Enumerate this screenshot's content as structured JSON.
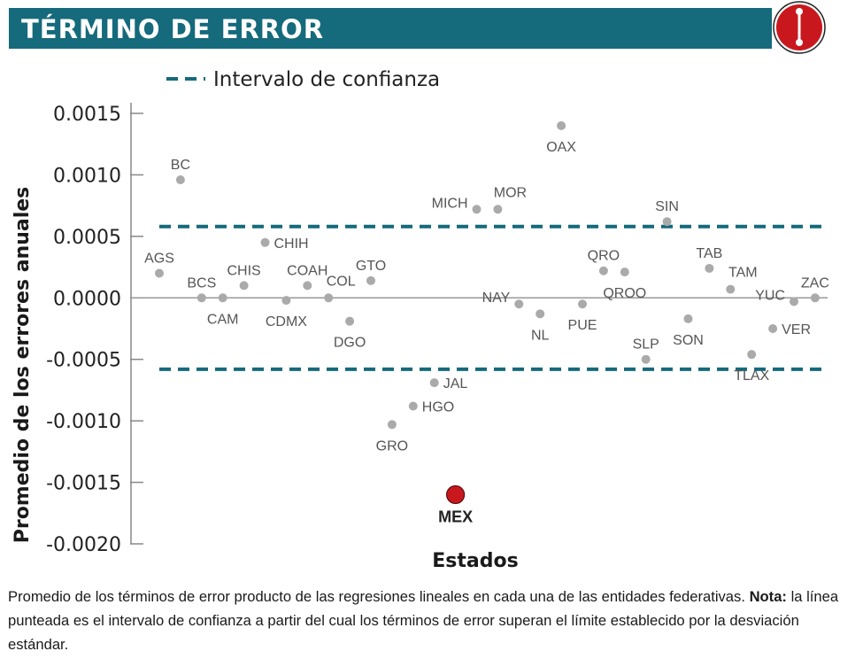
{
  "header": {
    "title": "TÉRMINO DE ERROR",
    "badge_icon": "exclamation-icon",
    "accent": "#156a7b",
    "badge_color": "#c8181e"
  },
  "chart_data": {
    "type": "scatter",
    "title": "TÉRMINO DE ERROR",
    "xlabel": "Estados",
    "ylabel": "Promedio de los errores anuales",
    "ylim": [
      -0.002,
      0.0015
    ],
    "yticks": [
      "0.0015",
      "0.0010",
      "0.0005",
      "0.0000",
      "-0.0005",
      "-0.0010",
      "-0.0015",
      "-0.0020"
    ],
    "ytick_values": [
      0.0015,
      0.001,
      0.0005,
      0.0,
      -0.0005,
      -0.001,
      -0.0015,
      -0.002
    ],
    "legend": {
      "label": "Intervalo de confianza",
      "position": "top-left"
    },
    "confidence_interval": [
      0.00058,
      -0.00058
    ],
    "zero_line": 0.0,
    "point_color": "#aaaaaa",
    "highlight_color": "#c8181e",
    "ci_color": "#156a7b",
    "points": [
      {
        "label": "AGS",
        "value": 0.0002,
        "label_pos": "above"
      },
      {
        "label": "BC",
        "value": 0.00096,
        "label_pos": "above"
      },
      {
        "label": "BCS",
        "value": 0.0,
        "label_pos": "above"
      },
      {
        "label": "CAM",
        "value": 0.0,
        "label_pos": "below"
      },
      {
        "label": "CHIS",
        "value": 0.0001,
        "label_pos": "above"
      },
      {
        "label": "CHIH",
        "value": 0.00045,
        "label_pos": "right"
      },
      {
        "label": "CDMX",
        "value": -2e-05,
        "label_pos": "below"
      },
      {
        "label": "COAH",
        "value": 0.0001,
        "label_pos": "above"
      },
      {
        "label": "COL",
        "value": 0.0,
        "label_pos": "above-right"
      },
      {
        "label": "DGO",
        "value": -0.00019,
        "label_pos": "below"
      },
      {
        "label": "GTO",
        "value": 0.00014,
        "label_pos": "above"
      },
      {
        "label": "GRO",
        "value": -0.00103,
        "label_pos": "below"
      },
      {
        "label": "HGO",
        "value": -0.00088,
        "label_pos": "right"
      },
      {
        "label": "JAL",
        "value": -0.00069,
        "label_pos": "right"
      },
      {
        "label": "MEX",
        "value": -0.0016,
        "label_pos": "below",
        "highlight": true
      },
      {
        "label": "MICH",
        "value": 0.00072,
        "label_pos": "left"
      },
      {
        "label": "MOR",
        "value": 0.00072,
        "label_pos": "above-right"
      },
      {
        "label": "NAY",
        "value": -5e-05,
        "label_pos": "left"
      },
      {
        "label": "NL",
        "value": -0.00013,
        "label_pos": "below"
      },
      {
        "label": "OAX",
        "value": 0.0014,
        "label_pos": "below"
      },
      {
        "label": "PUE",
        "value": -5e-05,
        "label_pos": "below"
      },
      {
        "label": "QRO",
        "value": 0.00022,
        "label_pos": "above"
      },
      {
        "label": "QROO",
        "value": 0.00021,
        "label_pos": "below"
      },
      {
        "label": "SLP",
        "value": -0.0005,
        "label_pos": "above"
      },
      {
        "label": "SIN",
        "value": 0.00062,
        "label_pos": "above"
      },
      {
        "label": "SON",
        "value": -0.00017,
        "label_pos": "below"
      },
      {
        "label": "TAB",
        "value": 0.00024,
        "label_pos": "above"
      },
      {
        "label": "TAM",
        "value": 7e-05,
        "label_pos": "above-right"
      },
      {
        "label": "TLAX",
        "value": -0.00046,
        "label_pos": "below"
      },
      {
        "label": "VER",
        "value": -0.00025,
        "label_pos": "right"
      },
      {
        "label": "YUC",
        "value": -3e-05,
        "label_pos": "left"
      },
      {
        "label": "ZAC",
        "value": 0.0,
        "label_pos": "above"
      }
    ]
  },
  "caption": {
    "text_1": "Promedio de los términos de error producto de las regresiones lineales en cada una de las entidades federativas. ",
    "note_label": "Nota:",
    "text_2": " la línea punteada es el intervalo de confianza a partir del cual los términos de error superan el límite establecido por la desviación estándar."
  }
}
